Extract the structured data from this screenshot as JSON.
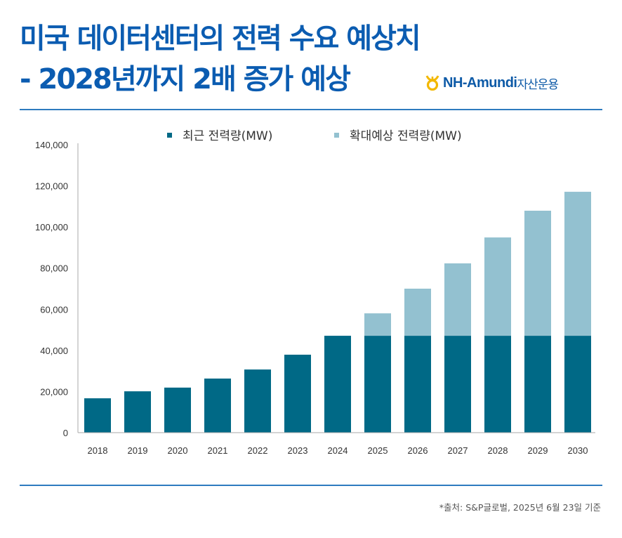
{
  "header": {
    "title_line1": "미국 데이터센터의 전력 수요 예상치",
    "title_line2": "- 2028년까지 2배 증가 예상",
    "brand_name": "NH-Amundi",
    "brand_korean": "자산운용",
    "brand_logo_icon": "nh-logo-icon"
  },
  "colors": {
    "title": "#0b5cb1",
    "rule": "#2e7bbf",
    "recent": "#006986",
    "expansion": "#93c1d0",
    "logo": "#f3b800"
  },
  "footer": {
    "source": "*출처: S&P글로벌, 2025년 6월 23일 기준"
  },
  "chart_data": {
    "type": "bar",
    "stacked": true,
    "title": "",
    "xlabel": "",
    "ylabel": "",
    "ylim": [
      0,
      140000
    ],
    "yticks": [
      0,
      20000,
      40000,
      60000,
      80000,
      100000,
      120000,
      140000
    ],
    "ytick_labels": [
      "0",
      "20,000",
      "40,000",
      "60,000",
      "80,000",
      "100,000",
      "120,000",
      "140,000"
    ],
    "grid": false,
    "legend_position": "top",
    "categories": [
      "2018",
      "2019",
      "2020",
      "2021",
      "2022",
      "2023",
      "2024",
      "2025",
      "2026",
      "2027",
      "2028",
      "2029",
      "2030"
    ],
    "series": [
      {
        "name": "최근 전력량(MW)",
        "color": "#006986",
        "values": [
          16700,
          20100,
          21900,
          26300,
          30700,
          37900,
          47100,
          47100,
          47100,
          47100,
          47100,
          47100,
          47100
        ]
      },
      {
        "name": "확대예상 전력량(MW)",
        "color": "#93c1d0",
        "values": [
          0,
          0,
          0,
          0,
          0,
          0,
          0,
          10900,
          22900,
          35200,
          47800,
          60800,
          70000
        ]
      }
    ]
  }
}
